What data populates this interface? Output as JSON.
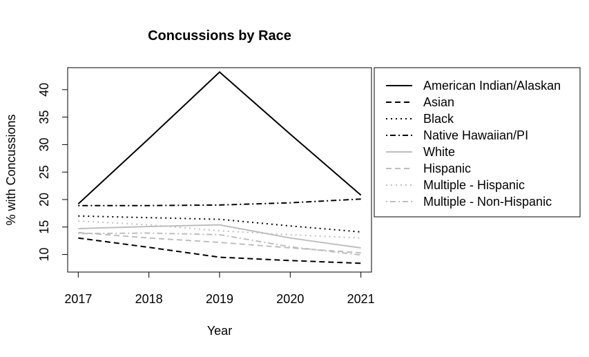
{
  "chart_data": {
    "type": "line",
    "title": "Concussions by Race",
    "xlabel": "Year",
    "ylabel": "% with Concussions",
    "x": [
      2017,
      2018,
      2019,
      2020,
      2021
    ],
    "xlim": [
      2016.85,
      2021.15
    ],
    "ylim": [
      6.8,
      44.0
    ],
    "yticks": [
      10,
      15,
      20,
      25,
      30,
      35,
      40
    ],
    "grid": false,
    "legend_position": "right",
    "series": [
      {
        "name": "American Indian/Alaskan",
        "values": [
          19.2,
          31.1,
          43.2,
          31.9,
          20.8
        ],
        "color": "#000000",
        "dash": "solid"
      },
      {
        "name": "Asian",
        "values": [
          13.0,
          11.3,
          9.5,
          8.9,
          8.4
        ],
        "color": "#000000",
        "dash": "dashed"
      },
      {
        "name": "Black",
        "values": [
          17.0,
          16.7,
          16.4,
          15.2,
          14.1
        ],
        "color": "#000000",
        "dash": "dotted"
      },
      {
        "name": "Native Hawaiian/PI",
        "values": [
          18.9,
          18.9,
          19.0,
          19.4,
          20.1
        ],
        "color": "#000000",
        "dash": "dotdash"
      },
      {
        "name": "White",
        "values": [
          14.7,
          15.1,
          15.4,
          13.0,
          11.2
        ],
        "color": "#bebebe",
        "dash": "solid"
      },
      {
        "name": "Hispanic",
        "values": [
          14.0,
          13.0,
          12.2,
          11.2,
          10.3
        ],
        "color": "#bebebe",
        "dash": "dashed"
      },
      {
        "name": "Multiple - Hispanic",
        "values": [
          16.1,
          15.4,
          14.3,
          13.6,
          13.0
        ],
        "color": "#bebebe",
        "dash": "dotted"
      },
      {
        "name": "Multiple - Non-Hispanic",
        "values": [
          13.8,
          13.9,
          13.6,
          11.4,
          9.9
        ],
        "color": "#bebebe",
        "dash": "dotdash"
      }
    ]
  }
}
